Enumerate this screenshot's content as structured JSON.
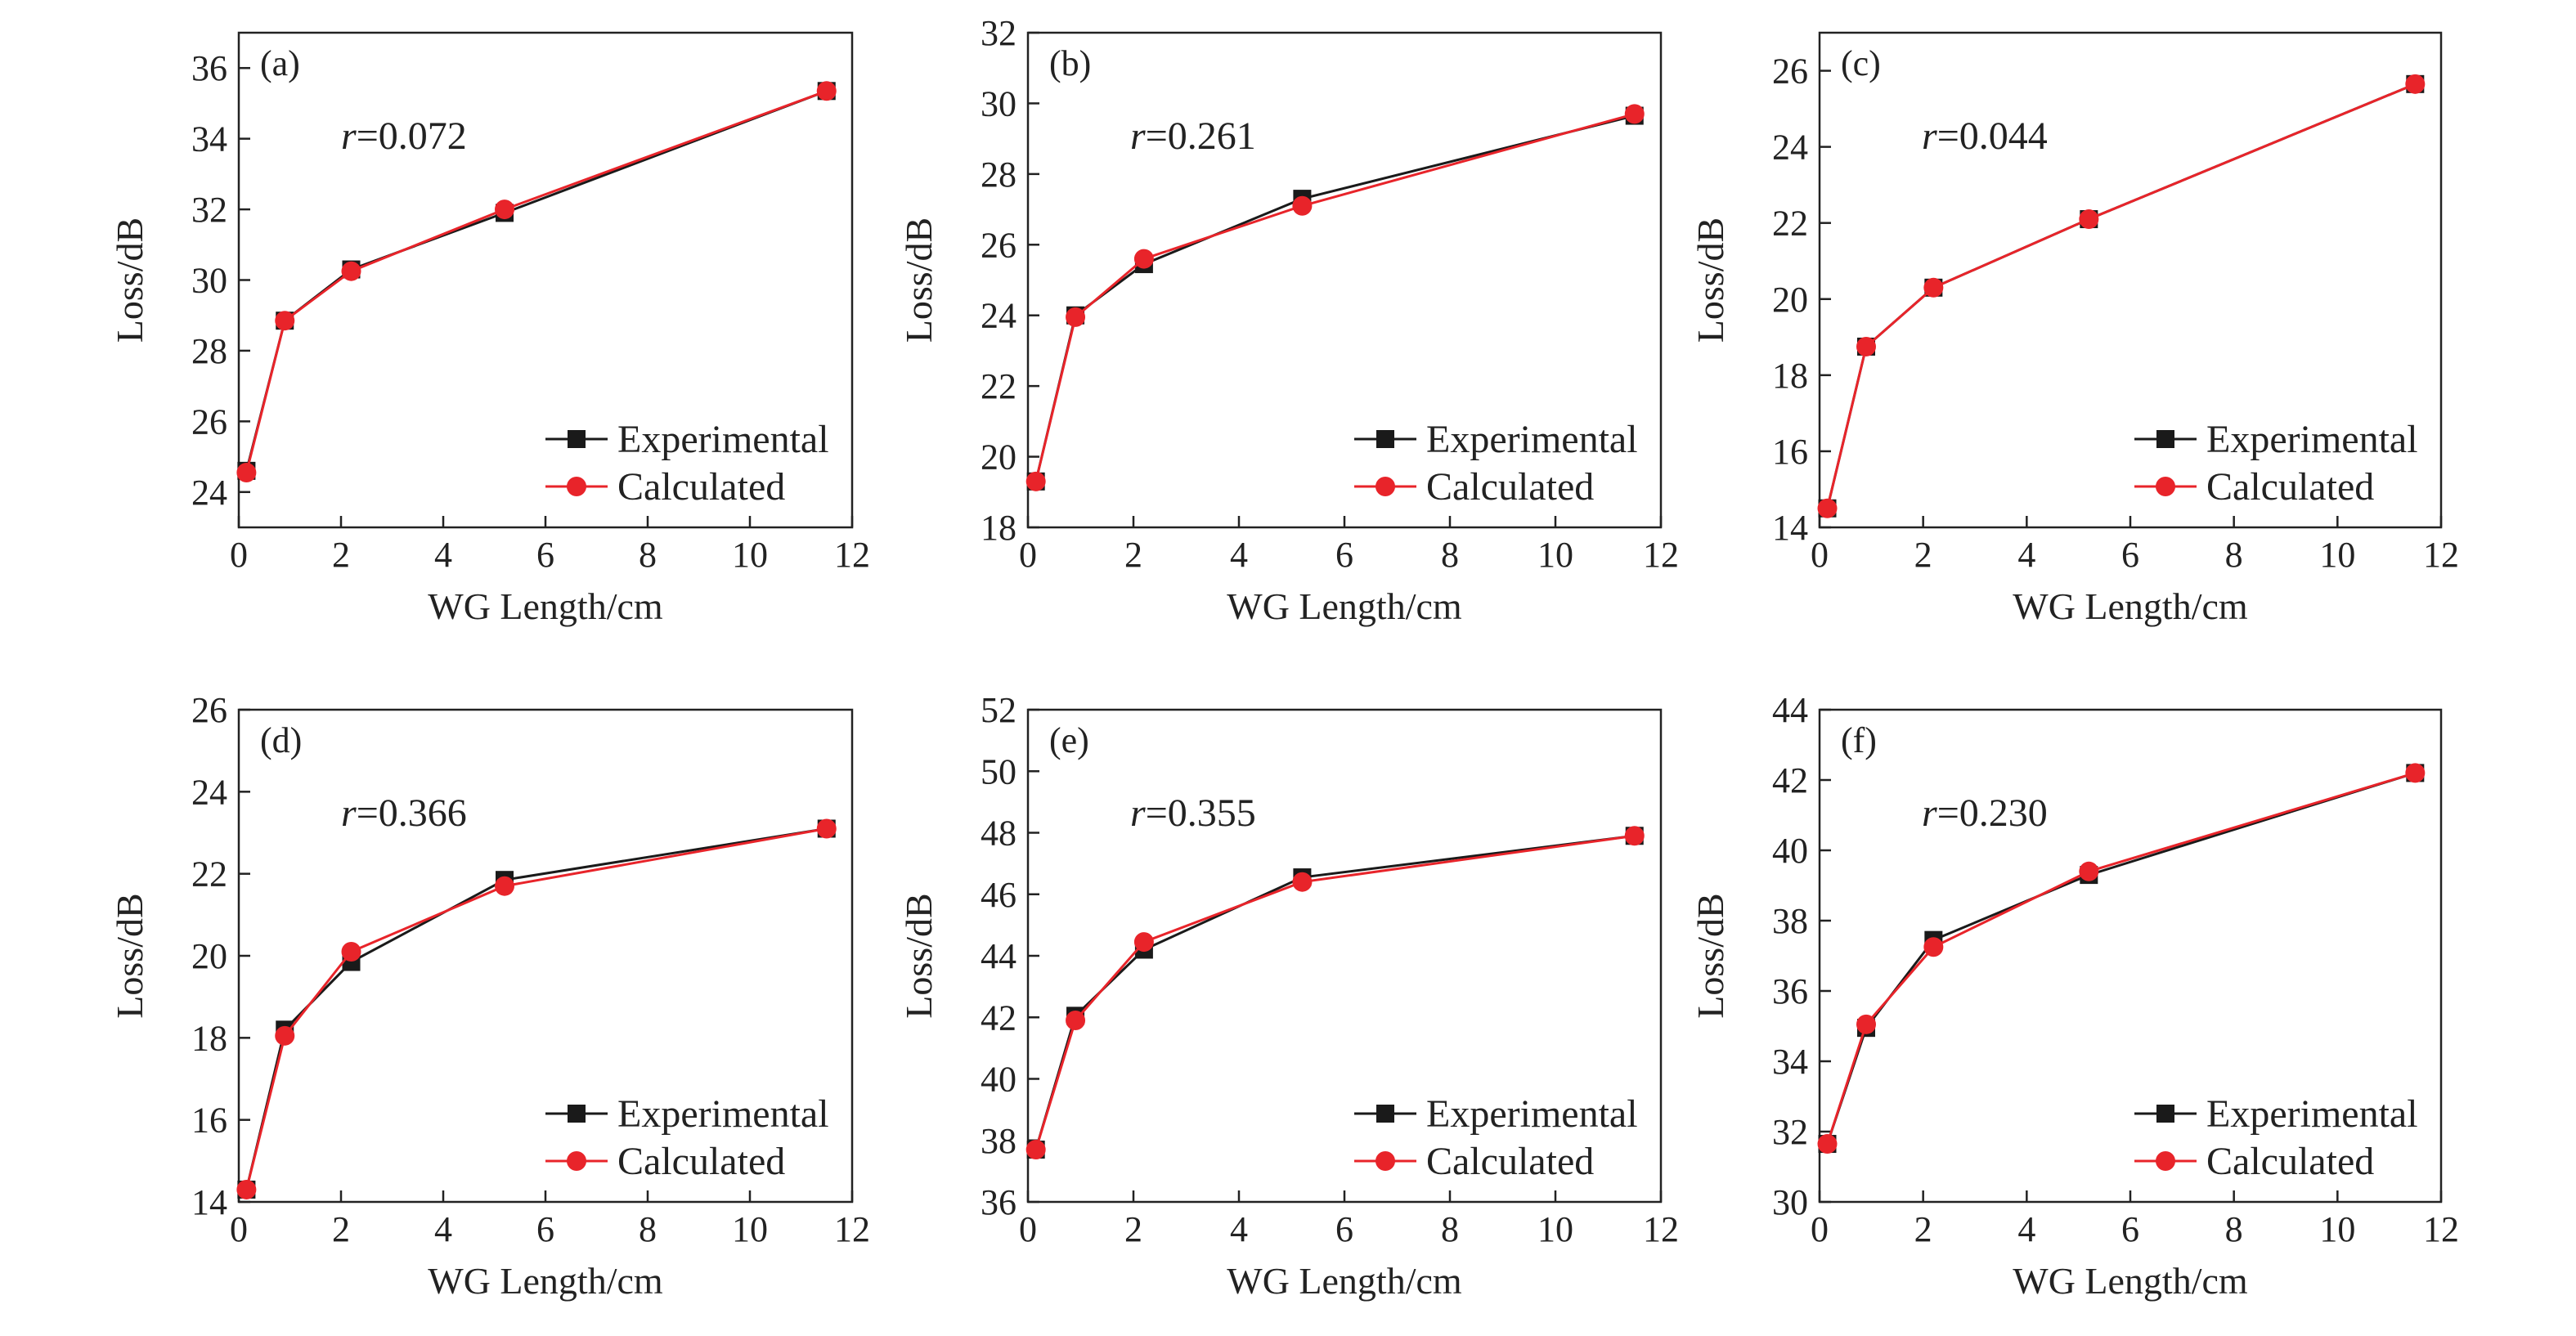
{
  "chart_data": [
    {
      "type": "line",
      "panel_label": "(a)",
      "annotation": {
        "var": "r",
        "value": "=0.072"
      },
      "xlabel": "WG Length/cm",
      "ylabel": "Loss/dB",
      "xlim": [
        0,
        12
      ],
      "ylim": [
        23,
        37
      ],
      "xticks": [
        0,
        2,
        4,
        6,
        8,
        10,
        12
      ],
      "yticks": [
        24,
        26,
        28,
        30,
        32,
        34,
        36
      ],
      "legend_position": "bottom-right",
      "x": [
        0.15,
        0.9,
        2.2,
        5.2,
        11.5
      ],
      "series": [
        {
          "name": "Experimental",
          "marker": "square",
          "color": "#1a1a1a",
          "values": [
            24.6,
            28.85,
            30.3,
            31.9,
            35.35
          ]
        },
        {
          "name": "Calculated",
          "marker": "circle",
          "color": "#e8242a",
          "values": [
            24.55,
            28.85,
            30.25,
            32.0,
            35.35
          ]
        }
      ]
    },
    {
      "type": "line",
      "panel_label": "(b)",
      "annotation": {
        "var": "r",
        "value": "=0.261"
      },
      "xlabel": "WG Length/cm",
      "ylabel": "Loss/dB",
      "xlim": [
        0,
        12
      ],
      "ylim": [
        18,
        32
      ],
      "xticks": [
        0,
        2,
        4,
        6,
        8,
        10,
        12
      ],
      "yticks": [
        18,
        20,
        22,
        24,
        26,
        28,
        30,
        32
      ],
      "legend_position": "bottom-right",
      "x": [
        0.15,
        0.9,
        2.2,
        5.2,
        11.5
      ],
      "series": [
        {
          "name": "Experimental",
          "marker": "square",
          "color": "#1a1a1a",
          "values": [
            19.3,
            24.0,
            25.45,
            27.3,
            29.65
          ]
        },
        {
          "name": "Calculated",
          "marker": "circle",
          "color": "#e8242a",
          "values": [
            19.3,
            23.95,
            25.6,
            27.1,
            29.7
          ]
        }
      ]
    },
    {
      "type": "line",
      "panel_label": "(c)",
      "annotation": {
        "var": "r",
        "value": "=0.044"
      },
      "xlabel": "WG Length/cm",
      "ylabel": "Loss/dB",
      "xlim": [
        0,
        12
      ],
      "ylim": [
        14,
        27
      ],
      "xticks": [
        0,
        2,
        4,
        6,
        8,
        10,
        12
      ],
      "yticks": [
        14,
        16,
        18,
        20,
        22,
        24,
        26
      ],
      "legend_position": "bottom-right",
      "x": [
        0.15,
        0.9,
        2.2,
        5.2,
        11.5
      ],
      "series": [
        {
          "name": "Experimental",
          "marker": "square",
          "color": "#1a1a1a",
          "values": [
            14.5,
            18.75,
            20.3,
            22.1,
            25.65
          ]
        },
        {
          "name": "Calculated",
          "marker": "circle",
          "color": "#e8242a",
          "values": [
            14.5,
            18.75,
            20.3,
            22.1,
            25.65
          ]
        }
      ]
    },
    {
      "type": "line",
      "panel_label": "(d)",
      "annotation": {
        "var": "r",
        "value": "=0.366"
      },
      "xlabel": "WG Length/cm",
      "ylabel": "Loss/dB",
      "xlim": [
        0,
        12
      ],
      "ylim": [
        14,
        26
      ],
      "xticks": [
        0,
        2,
        4,
        6,
        8,
        10,
        12
      ],
      "yticks": [
        14,
        16,
        18,
        20,
        22,
        24,
        26
      ],
      "legend_position": "bottom-right",
      "x": [
        0.15,
        0.9,
        2.2,
        5.2,
        11.5
      ],
      "series": [
        {
          "name": "Experimental",
          "marker": "square",
          "color": "#1a1a1a",
          "values": [
            14.3,
            18.2,
            19.85,
            21.85,
            23.1
          ]
        },
        {
          "name": "Calculated",
          "marker": "circle",
          "color": "#e8242a",
          "values": [
            14.3,
            18.05,
            20.1,
            21.7,
            23.1
          ]
        }
      ]
    },
    {
      "type": "line",
      "panel_label": "(e)",
      "annotation": {
        "var": "r",
        "value": "=0.355"
      },
      "xlabel": "WG Length/cm",
      "ylabel": "Loss/dB",
      "xlim": [
        0,
        12
      ],
      "ylim": [
        36,
        52
      ],
      "xticks": [
        0,
        2,
        4,
        6,
        8,
        10,
        12
      ],
      "yticks": [
        36,
        38,
        40,
        42,
        44,
        46,
        48,
        50,
        52
      ],
      "legend_position": "bottom-right",
      "x": [
        0.15,
        0.9,
        2.2,
        5.2,
        11.5
      ],
      "series": [
        {
          "name": "Experimental",
          "marker": "square",
          "color": "#1a1a1a",
          "values": [
            37.7,
            42.05,
            44.2,
            46.55,
            47.9
          ]
        },
        {
          "name": "Calculated",
          "marker": "circle",
          "color": "#e8242a",
          "values": [
            37.7,
            41.9,
            44.45,
            46.4,
            47.9
          ]
        }
      ]
    },
    {
      "type": "line",
      "panel_label": "(f)",
      "annotation": {
        "var": "r",
        "value": "=0.230"
      },
      "xlabel": "WG Length/cm",
      "ylabel": "Loss/dB",
      "xlim": [
        0,
        12
      ],
      "ylim": [
        30,
        44
      ],
      "xticks": [
        0,
        2,
        4,
        6,
        8,
        10,
        12
      ],
      "yticks": [
        30,
        32,
        34,
        36,
        38,
        40,
        42,
        44
      ],
      "legend_position": "bottom-right",
      "x": [
        0.15,
        0.9,
        2.2,
        5.2,
        11.5
      ],
      "series": [
        {
          "name": "Experimental",
          "marker": "square",
          "color": "#1a1a1a",
          "values": [
            31.65,
            34.95,
            37.45,
            39.3,
            42.2
          ]
        },
        {
          "name": "Calculated",
          "marker": "circle",
          "color": "#e8242a",
          "values": [
            31.65,
            35.05,
            37.25,
            39.4,
            42.2
          ]
        }
      ]
    }
  ]
}
